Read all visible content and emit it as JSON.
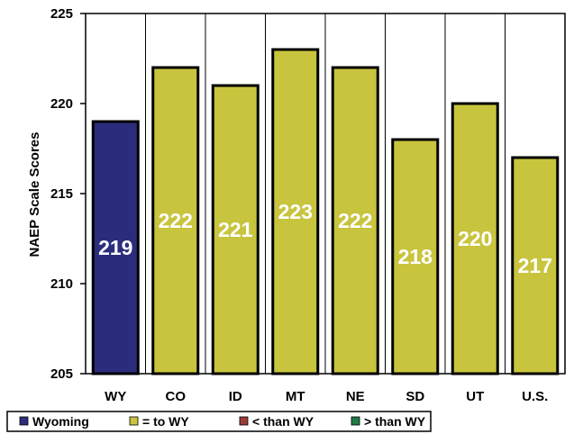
{
  "chart_data": {
    "type": "bar",
    "ylabel": "NAEP Scale Scores",
    "ylim": [
      205,
      225
    ],
    "yticks": [
      205,
      210,
      215,
      220,
      225
    ],
    "categories": [
      "WY",
      "CO",
      "ID",
      "MT",
      "NE",
      "SD",
      "UT",
      "U.S."
    ],
    "values": [
      219,
      222,
      221,
      223,
      222,
      218,
      220,
      217
    ],
    "data_labels": [
      "219",
      "222",
      "221",
      "223",
      "222",
      "218",
      "220",
      "217"
    ],
    "bar_groups": [
      "wyoming",
      "equal",
      "equal",
      "equal",
      "equal",
      "equal",
      "equal",
      "equal"
    ],
    "colors": {
      "wyoming": "#2b2d7c",
      "equal": "#c8c43e",
      "less": "#9a3b3b",
      "greater": "#1f7a46"
    },
    "legend": {
      "placement": "bottom",
      "entries": [
        {
          "key": "wyoming",
          "label": "Wyoming"
        },
        {
          "key": "equal",
          "label": "= to WY"
        },
        {
          "key": "less",
          "label": "< than WY"
        },
        {
          "key": "greater",
          "label": "> than WY"
        }
      ]
    },
    "grid": false
  }
}
